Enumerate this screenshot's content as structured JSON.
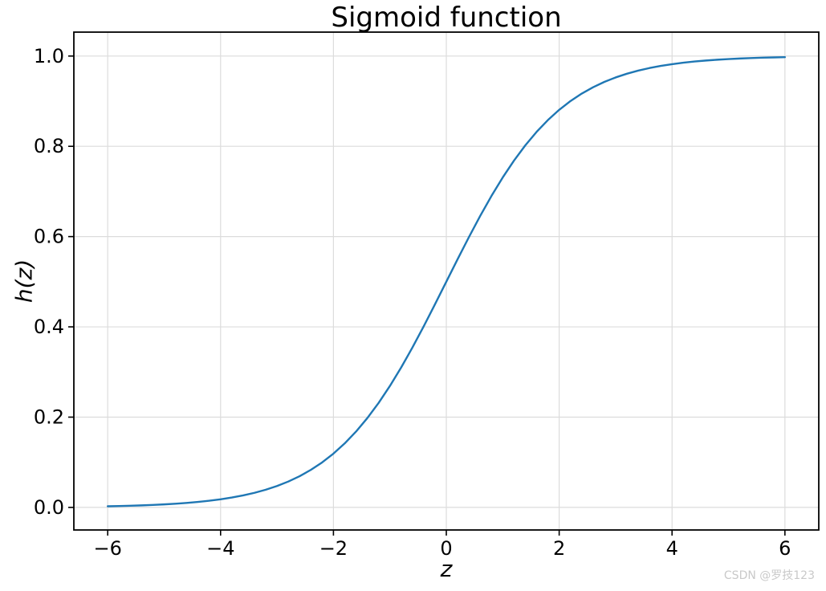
{
  "figure": {
    "background": "#ffffff",
    "watermark": {
      "text": "CSDN @罗技123",
      "color": "#c9c9c9"
    }
  },
  "chart_data": {
    "type": "line",
    "title": "Sigmoid function",
    "xlabel": "z",
    "ylabel": "h(z)",
    "xlim": [
      -6.6,
      6.6
    ],
    "ylim": [
      -0.05,
      1.053
    ],
    "x_ticks": [
      -6,
      -4,
      -2,
      0,
      2,
      4,
      6
    ],
    "y_ticks": [
      0.0,
      0.2,
      0.4,
      0.6,
      0.8,
      1.0
    ],
    "grid": true,
    "grid_color": "#dcdcdc",
    "spine_color": "#000000",
    "tick_label_color": "#000000",
    "line_color": "#1f77b4",
    "legend": "none",
    "series": [
      {
        "name": "sigmoid",
        "x": [
          -6.0,
          -5.8,
          -5.6,
          -5.4,
          -5.2,
          -5.0,
          -4.8,
          -4.6,
          -4.4,
          -4.2,
          -4.0,
          -3.8,
          -3.6,
          -3.4,
          -3.2,
          -3.0,
          -2.8,
          -2.6,
          -2.4,
          -2.2,
          -2.0,
          -1.8,
          -1.6,
          -1.4,
          -1.2,
          -1.0,
          -0.8,
          -0.6,
          -0.4,
          -0.2,
          0.0,
          0.2,
          0.4,
          0.6,
          0.8,
          1.0,
          1.2,
          1.4,
          1.6,
          1.8,
          2.0,
          2.2,
          2.4,
          2.6,
          2.8,
          3.0,
          3.2,
          3.4,
          3.6,
          3.8,
          4.0,
          4.2,
          4.4,
          4.6,
          4.8,
          5.0,
          5.2,
          5.4,
          5.6,
          5.8,
          6.0
        ],
        "y": [
          0.00247,
          0.00302,
          0.00368,
          0.00449,
          0.00548,
          0.00669,
          0.00815,
          0.00995,
          0.01212,
          0.01477,
          0.01799,
          0.02188,
          0.0266,
          0.0323,
          0.03917,
          0.04743,
          0.05732,
          0.06913,
          0.08317,
          0.09975,
          0.1192,
          0.14185,
          0.16798,
          0.19782,
          0.23148,
          0.26894,
          0.31003,
          0.35434,
          0.40131,
          0.45017,
          0.5,
          0.54983,
          0.59869,
          0.64566,
          0.68997,
          0.73106,
          0.76852,
          0.80218,
          0.83202,
          0.85815,
          0.8808,
          0.90025,
          0.91683,
          0.93087,
          0.94268,
          0.95257,
          0.96083,
          0.9677,
          0.9734,
          0.97812,
          0.98201,
          0.98523,
          0.98788,
          0.99005,
          0.99184,
          0.99331,
          0.99452,
          0.99551,
          0.99632,
          0.99698,
          0.99753
        ]
      }
    ]
  }
}
